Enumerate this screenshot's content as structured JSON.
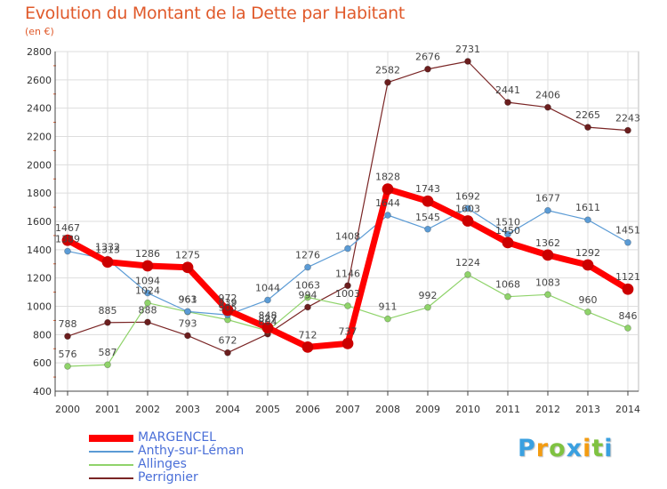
{
  "chart_data": {
    "type": "line",
    "title": "Evolution du Montant de la Dette par Habitant",
    "subtitle": "(en €)",
    "xlabel": "",
    "ylabel": "",
    "x": [
      "2000",
      "2001",
      "2002",
      "2003",
      "2004",
      "2005",
      "2006",
      "2007",
      "2008",
      "2009",
      "2010",
      "2011",
      "2012",
      "2013",
      "2014"
    ],
    "ylim": [
      400,
      2800
    ],
    "yticks": [
      "400",
      "600",
      "800",
      "1000",
      "1200",
      "1400",
      "1600",
      "1800",
      "2000",
      "2200",
      "2400",
      "2600",
      "2800"
    ],
    "grid": true,
    "legend_position": "bottom-left",
    "series": [
      {
        "name": "MARGENCEL",
        "color": "#ff0000",
        "values": [
          1467,
          1313,
          1286,
          1275,
          972,
          848,
          712,
          737,
          1828,
          1743,
          1603,
          1450,
          1362,
          1292,
          1121
        ]
      },
      {
        "name": "Anthy-sur-Léman",
        "color": "#5b9bd5",
        "values": [
          1389,
          1332,
          1094,
          963,
          939,
          1044,
          1276,
          1408,
          1644,
          1545,
          1692,
          1510,
          1677,
          1611,
          1451
        ]
      },
      {
        "name": "Allinges",
        "color": "#8fd36a",
        "values": [
          576,
          587,
          1024,
          961,
          905,
          827,
          1063,
          1003,
          911,
          992,
          1224,
          1068,
          1083,
          960,
          846
        ]
      },
      {
        "name": "Perrignier",
        "color": "#7a2525",
        "values": [
          788,
          885,
          888,
          793,
          672,
          804,
          994,
          1146,
          2582,
          2676,
          2731,
          2441,
          2406,
          2265,
          2243
        ]
      }
    ]
  },
  "logo": {
    "letters": [
      "P",
      "r",
      "o",
      "x",
      "i",
      "t",
      "i"
    ],
    "colors": [
      "#3aa0e0",
      "#f39c12",
      "#7fc241",
      "#3aa0e0",
      "#f39c12",
      "#7fc241",
      "#3aa0e0"
    ]
  }
}
